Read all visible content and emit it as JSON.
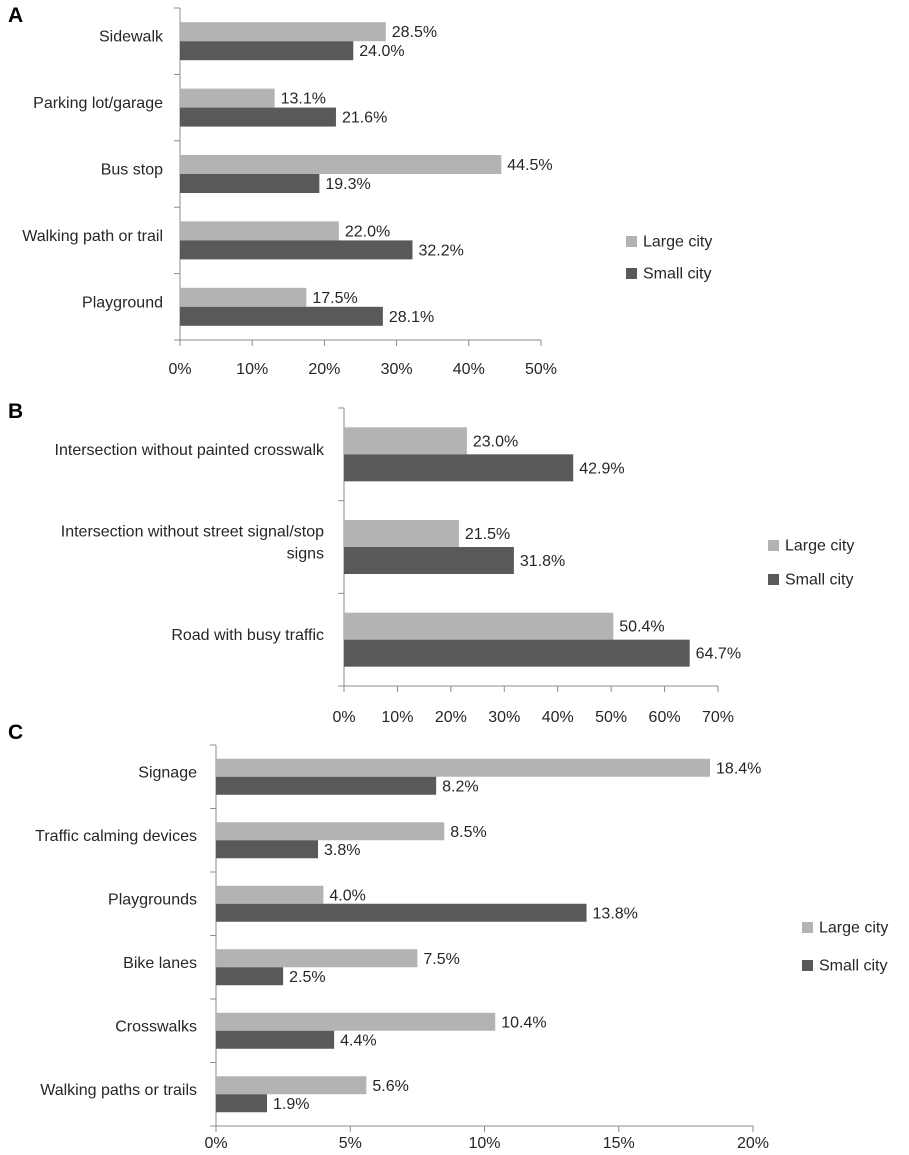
{
  "colors": {
    "large": "#b3b3b3",
    "small": "#595959"
  },
  "chart_data": [
    {
      "panel": "A",
      "type": "bar",
      "orientation": "horizontal",
      "categories": [
        "Sidewalk",
        "Parking lot/garage",
        "Bus stop",
        "Walking path or trail",
        "Playground"
      ],
      "series": [
        {
          "name": "Large city",
          "values": [
            28.5,
            13.1,
            44.5,
            22.0,
            17.5
          ],
          "labels": [
            "28.5%",
            "13.1%",
            "44.5%",
            "22.0%",
            "17.5%"
          ]
        },
        {
          "name": "Small city",
          "values": [
            24.0,
            21.6,
            19.3,
            32.2,
            28.1
          ],
          "labels": [
            "24.0%",
            "21.6%",
            "19.3%",
            "32.2%",
            "28.1%"
          ]
        }
      ],
      "xlim": [
        0,
        50
      ],
      "xticks": [
        "0%",
        "10%",
        "20%",
        "30%",
        "40%",
        "50%"
      ],
      "legend": [
        "Large city",
        "Small city"
      ],
      "legend_position": "right"
    },
    {
      "panel": "B",
      "type": "bar",
      "orientation": "horizontal",
      "categories": [
        "Intersection without painted crosswalk",
        "Intersection without street signal/stop signs",
        "Road with busy traffic"
      ],
      "category_lines": [
        [
          "Intersection without painted crosswalk"
        ],
        [
          "Intersection without street signal/stop",
          "signs"
        ],
        [
          "Road with busy traffic"
        ]
      ],
      "series": [
        {
          "name": "Large city",
          "values": [
            23.0,
            21.5,
            50.4
          ],
          "labels": [
            "23.0%",
            "21.5%",
            "50.4%"
          ]
        },
        {
          "name": "Small city",
          "values": [
            42.9,
            31.8,
            64.7
          ],
          "labels": [
            "42.9%",
            "31.8%",
            "64.7%"
          ]
        }
      ],
      "xlim": [
        0,
        70
      ],
      "xticks": [
        "0%",
        "10%",
        "20%",
        "30%",
        "40%",
        "50%",
        "60%",
        "70%"
      ],
      "legend": [
        "Large city",
        "Small city"
      ],
      "legend_position": "right"
    },
    {
      "panel": "C",
      "type": "bar",
      "orientation": "horizontal",
      "categories": [
        "Signage",
        "Traffic calming devices",
        "Playgrounds",
        "Bike lanes",
        "Crosswalks",
        "Walking paths or trails"
      ],
      "series": [
        {
          "name": "Large city",
          "values": [
            18.4,
            8.5,
            4.0,
            7.5,
            10.4,
            5.6
          ],
          "labels": [
            "18.4%",
            "8.5%",
            "4.0%",
            "7.5%",
            "10.4%",
            "5.6%"
          ]
        },
        {
          "name": "Small city",
          "values": [
            8.2,
            3.8,
            13.8,
            2.5,
            4.4,
            1.9
          ],
          "labels": [
            "8.2%",
            "3.8%",
            "13.8%",
            "2.5%",
            "4.4%",
            "1.9%"
          ]
        }
      ],
      "xlim": [
        0,
        20
      ],
      "xticks": [
        "0%",
        "5%",
        "10%",
        "15%",
        "20%"
      ],
      "legend": [
        "Large city",
        "Small city"
      ],
      "legend_position": "right"
    }
  ]
}
